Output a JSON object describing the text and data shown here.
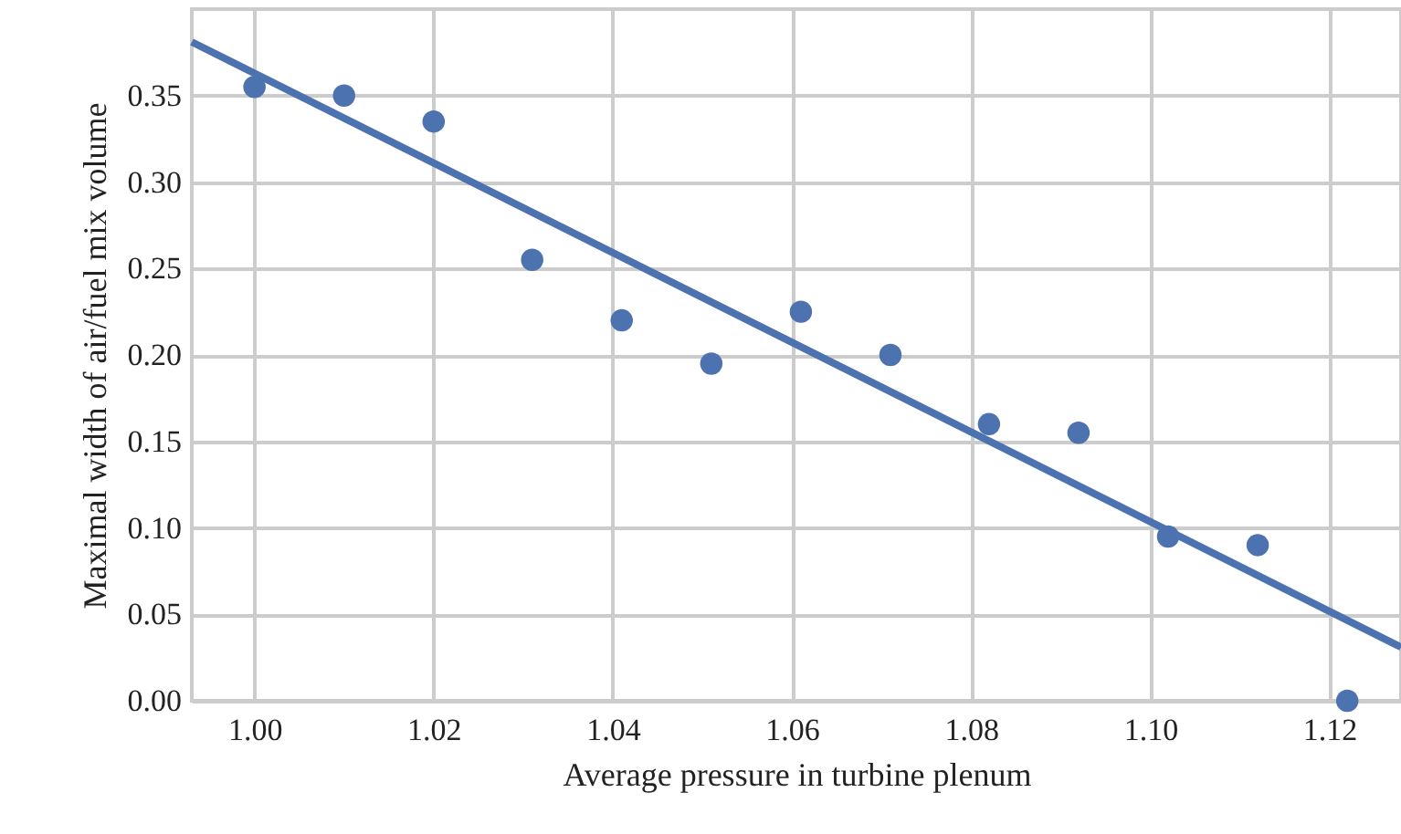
{
  "chart_data": {
    "type": "scatter",
    "xlabel": "Average pressure in turbine plenum",
    "ylabel": "Maximal width of air/fuel mix volume",
    "xlim": [
      0.993,
      1.128
    ],
    "xticks": [
      {
        "value": 1.0,
        "label": "1.00"
      },
      {
        "value": 1.02,
        "label": "1.02"
      },
      {
        "value": 1.04,
        "label": "1.04"
      },
      {
        "value": 1.06,
        "label": "1.06"
      },
      {
        "value": 1.08,
        "label": "1.08"
      },
      {
        "value": 1.1,
        "label": "1.10"
      },
      {
        "value": 1.12,
        "label": "1.12"
      }
    ],
    "ylim": [
      0,
      0.4
    ],
    "yticks": [
      {
        "value": 0,
        "label": "0.00"
      },
      {
        "value": 0.05,
        "label": "0.05"
      },
      {
        "value": 0.1,
        "label": "0.10"
      },
      {
        "value": 0.15,
        "label": "0.15"
      },
      {
        "value": 0.2,
        "label": "0.20"
      },
      {
        "value": 0.25,
        "label": "0.25"
      },
      {
        "value": 0.3,
        "label": "0.30"
      },
      {
        "value": 0.35,
        "label": "0.35"
      }
    ],
    "grid": true,
    "series": [
      {
        "marker": "circle",
        "color": "#4c72b0",
        "x": [
          1.0,
          1.01,
          1.02,
          1.031,
          1.041,
          1.051,
          1.061,
          1.071,
          1.082,
          1.092,
          1.102,
          1.112,
          1.122
        ],
        "values": [
          0.355,
          0.35,
          0.335,
          0.255,
          0.22,
          0.195,
          0.225,
          0.2,
          0.16,
          0.155,
          0.095,
          0.09,
          0.0
        ]
      },
      {
        "type": "line",
        "color": "#4c72b0",
        "x": [
          0.993,
          1.128
        ],
        "values": [
          0.381,
          0.031
        ]
      }
    ]
  }
}
